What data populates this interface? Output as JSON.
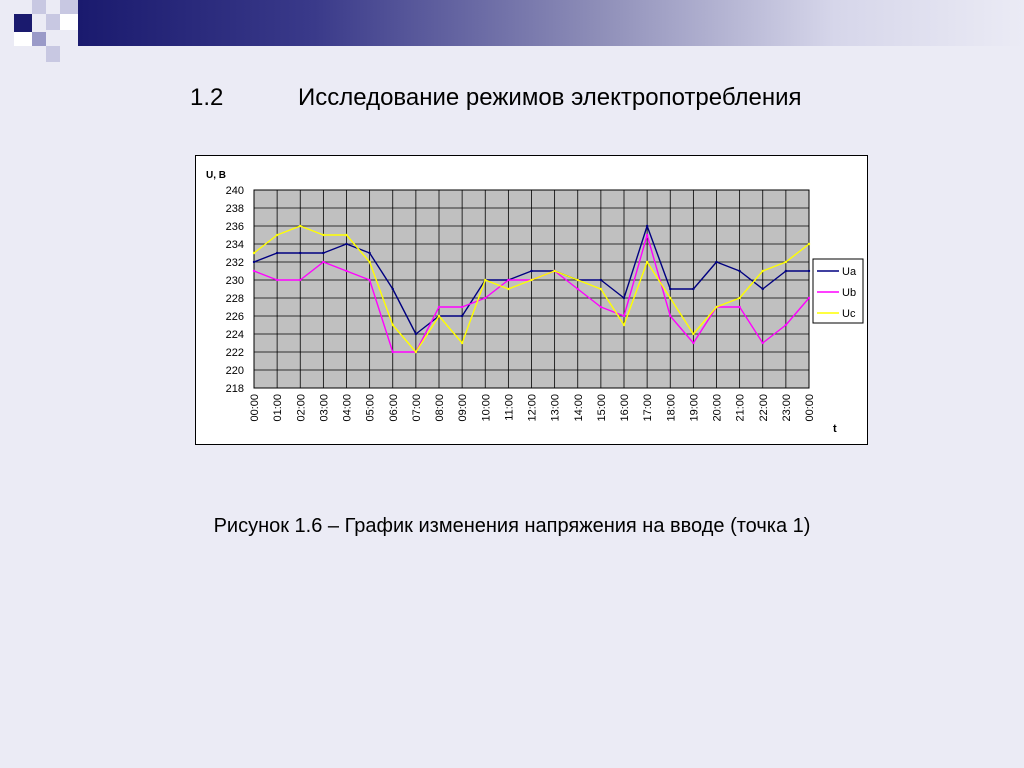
{
  "slide": {
    "section_number": "1.2",
    "section_title": "Исследование режимов электропотребления",
    "caption": "Рисунок 1.6 – График изменения напряжения на вводе (точка 1)",
    "colors": {
      "background": "#ebebf5",
      "deco_dark": "#1a1a6e",
      "deco_light": "#9a9ac8"
    }
  },
  "chart_data": {
    "type": "line",
    "ylabel": "U, В",
    "xlabel": "t",
    "ylim": [
      218,
      240
    ],
    "yticks": [
      240,
      238,
      236,
      234,
      232,
      230,
      228,
      226,
      224,
      222,
      220,
      218
    ],
    "categories": [
      "00:00",
      "01:00",
      "02:00",
      "03:00",
      "04:00",
      "05:00",
      "06:00",
      "07:00",
      "08:00",
      "09:00",
      "10:00",
      "11:00",
      "12:00",
      "13:00",
      "14:00",
      "15:00",
      "16:00",
      "17:00",
      "18:00",
      "19:00",
      "20:00",
      "21:00",
      "22:00",
      "23:00",
      "00:00"
    ],
    "grid": true,
    "legend_position": "right",
    "plot_background": "#c0c0c0",
    "series": [
      {
        "name": "Ua",
        "color": "#000080",
        "values": [
          232,
          233,
          233,
          233,
          234,
          233,
          229,
          224,
          226,
          226,
          230,
          230,
          231,
          231,
          230,
          230,
          228,
          236,
          229,
          229,
          232,
          231,
          229,
          231,
          231
        ]
      },
      {
        "name": "Ub",
        "color": "#ff00ff",
        "values": [
          231,
          230,
          230,
          232,
          231,
          230,
          222,
          222,
          227,
          227,
          228,
          230,
          230,
          231,
          229,
          227,
          226,
          235,
          226,
          223,
          227,
          227,
          223,
          225,
          228
        ]
      },
      {
        "name": "Uc",
        "color": "#ffff00",
        "values": [
          233,
          235,
          236,
          235,
          235,
          232,
          225,
          222,
          226,
          223,
          230,
          229,
          230,
          231,
          230,
          229,
          225,
          232,
          228,
          224,
          227,
          228,
          231,
          232,
          234
        ]
      }
    ]
  }
}
